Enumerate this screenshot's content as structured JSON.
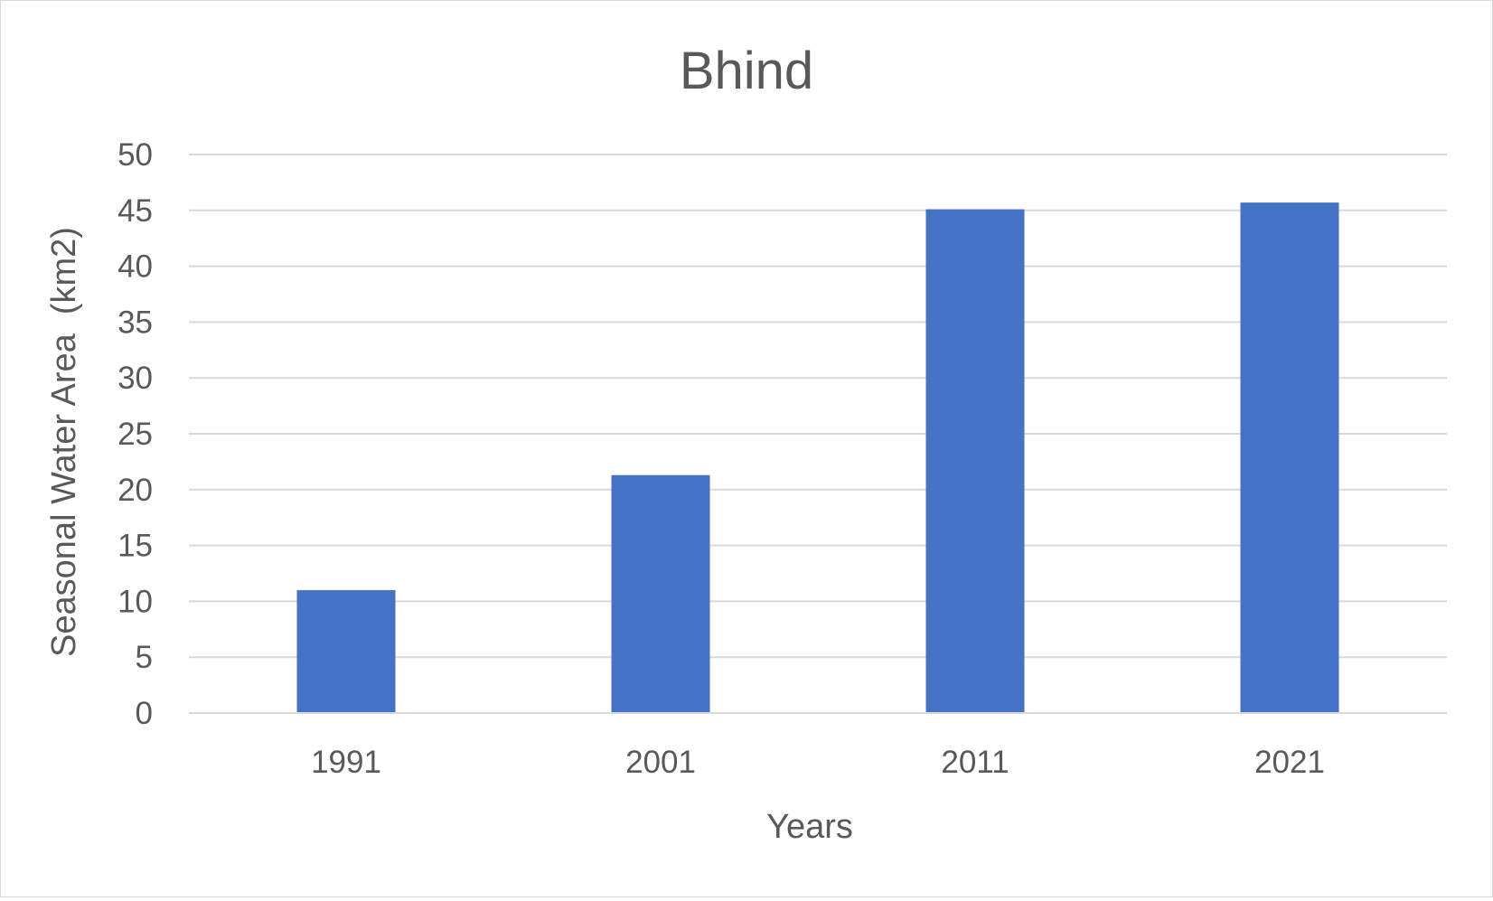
{
  "chart_data": {
    "type": "bar",
    "title": "Bhind",
    "xlabel": "Years",
    "ylabel": "Seasonal Water Area  (km2)",
    "categories": [
      "1991",
      "2001",
      "2011",
      "2021"
    ],
    "series": [
      {
        "values": [
          11,
          21.3,
          45.1,
          45.7
        ],
        "color": "#4472c4"
      }
    ],
    "ylim": [
      0,
      50
    ],
    "yticks": [
      0,
      5,
      10,
      15,
      20,
      25,
      30,
      35,
      40,
      45,
      50
    ],
    "grid": true,
    "legend": "none"
  }
}
